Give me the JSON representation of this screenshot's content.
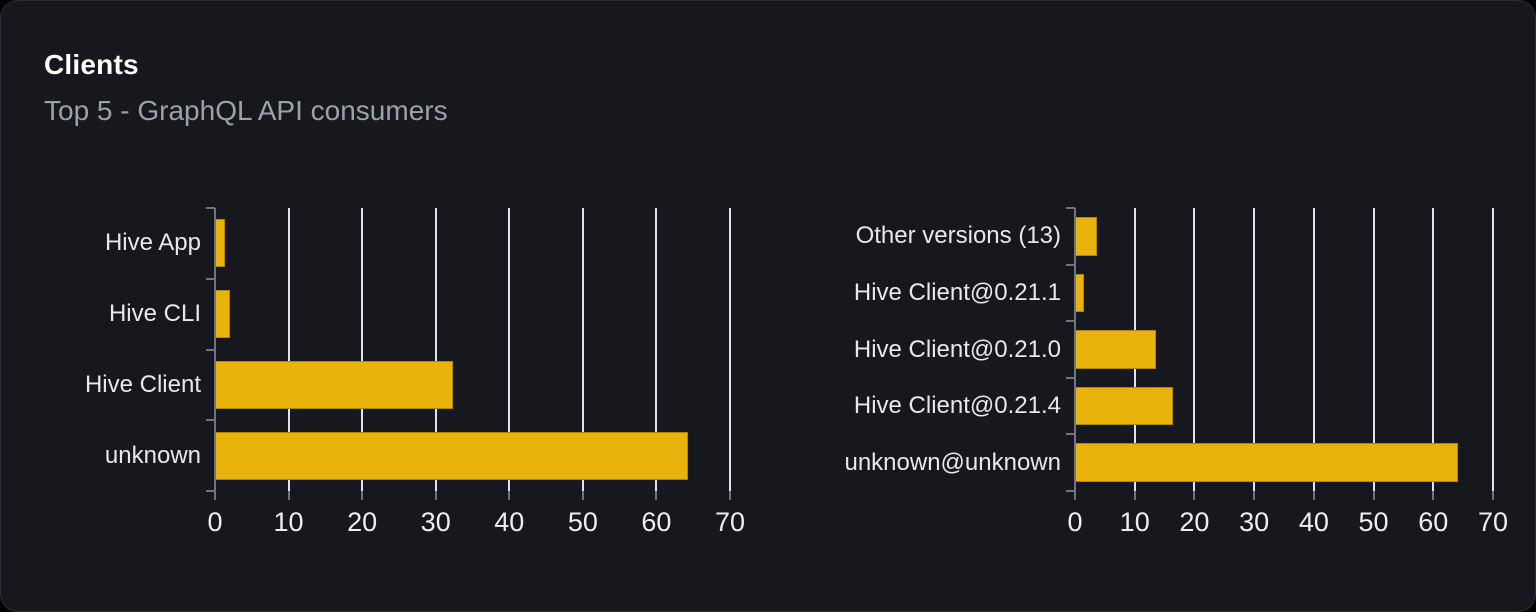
{
  "header": {
    "title": "Clients",
    "subtitle": "Top 5 - GraphQL API consumers"
  },
  "colors": {
    "bar": "#e9b30b",
    "card_background": "#16181d",
    "page_background": "#000000",
    "gridline": "#dfe4ea",
    "axis": "#70747c",
    "title_text": "#ffffff",
    "subtitle_text": "#9ba1ab",
    "category_label_text": "#e6e8eb",
    "tick_label_text": "#edeef0"
  },
  "chart_data": [
    {
      "type": "bar",
      "orientation": "horizontal",
      "name": "clients-by-name",
      "categories": [
        "Hive App",
        "Hive CLI",
        "Hive Client",
        "unknown"
      ],
      "values": [
        1.4,
        2.1,
        32.3,
        64.3
      ],
      "xlim": [
        0,
        70
      ],
      "xticks": [
        0,
        10,
        20,
        30,
        40,
        50,
        60,
        70
      ],
      "grid": true,
      "legend": "none"
    },
    {
      "type": "bar",
      "orientation": "horizontal",
      "name": "clients-by-version",
      "categories": [
        "Other versions (13)",
        "Hive Client@0.21.1",
        "Hive Client@0.21.0",
        "Hive Client@0.21.4",
        "unknown@unknown"
      ],
      "values": [
        3.7,
        1.5,
        13.6,
        16.4,
        64.2
      ],
      "xlim": [
        0,
        70
      ],
      "xticks": [
        0,
        10,
        20,
        30,
        40,
        50,
        60,
        70
      ],
      "grid": true,
      "legend": "none"
    }
  ]
}
